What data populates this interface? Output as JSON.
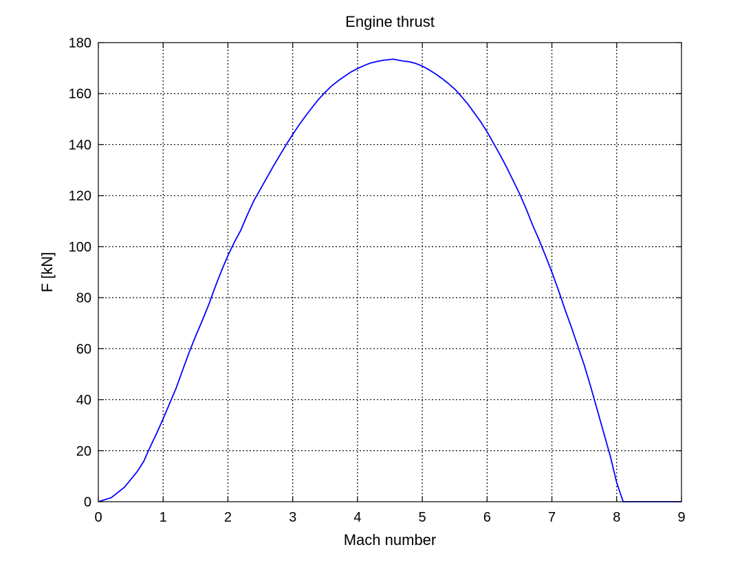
{
  "chart_data": {
    "type": "line",
    "title": "Engine thrust",
    "xlabel": "Mach number",
    "ylabel": "F [kN]",
    "xlim": [
      0,
      9
    ],
    "ylim": [
      0,
      180
    ],
    "xticks": [
      "0",
      "1",
      "2",
      "3",
      "4",
      "5",
      "6",
      "7",
      "8",
      "9"
    ],
    "yticks": [
      "0",
      "20",
      "40",
      "60",
      "80",
      "100",
      "120",
      "140",
      "160",
      "180"
    ],
    "grid": true,
    "series": [
      {
        "color": "#0000ff",
        "x": [
          0,
          0.2,
          0.4,
          0.6,
          0.7,
          0.8,
          0.9,
          1.0,
          1.1,
          1.2,
          1.3,
          1.4,
          1.5,
          1.6,
          1.7,
          1.8,
          1.9,
          2.0,
          2.1,
          2.2,
          2.3,
          2.4,
          2.5,
          2.6,
          2.7,
          2.8,
          2.9,
          3.0,
          3.1,
          3.2,
          3.3,
          3.4,
          3.5,
          3.6,
          3.7,
          3.8,
          3.9,
          4.0,
          4.1,
          4.2,
          4.3,
          4.4,
          4.55,
          4.7,
          4.8,
          4.9,
          5.0,
          5.1,
          5.2,
          5.3,
          5.4,
          5.5,
          5.6,
          5.7,
          5.8,
          5.9,
          6.0,
          6.1,
          6.2,
          6.3,
          6.4,
          6.5,
          6.6,
          6.7,
          6.8,
          6.9,
          7.0,
          7.1,
          7.2,
          7.3,
          7.4,
          7.5,
          7.6,
          7.7,
          7.8,
          7.9,
          8.0,
          8.1,
          8.2,
          8.5,
          9.0
        ],
        "y": [
          0,
          1.6,
          5.6,
          11.8,
          15.8,
          21.5,
          26.8,
          32.5,
          38.5,
          44.5,
          51.5,
          58.5,
          64.8,
          70.8,
          77.0,
          84.0,
          90.5,
          96.5,
          101.8,
          106.5,
          112.5,
          118.0,
          122.5,
          127.0,
          131.5,
          135.8,
          140.0,
          144.0,
          147.8,
          151.3,
          154.6,
          157.8,
          160.5,
          163.0,
          165.0,
          166.8,
          168.5,
          169.8,
          171.0,
          172.0,
          172.6,
          173.1,
          173.5,
          172.8,
          172.5,
          171.8,
          170.8,
          169.4,
          167.8,
          166.0,
          164.0,
          161.8,
          159.0,
          156.0,
          152.5,
          149.0,
          145.0,
          140.5,
          136.0,
          131.2,
          126.0,
          120.8,
          115.0,
          108.6,
          102.8,
          96.5,
          90.0,
          83.0,
          75.5,
          68.5,
          61.0,
          53.5,
          45.0,
          36.0,
          27.0,
          18.0,
          7.5,
          0,
          0,
          0,
          0
        ]
      }
    ]
  }
}
